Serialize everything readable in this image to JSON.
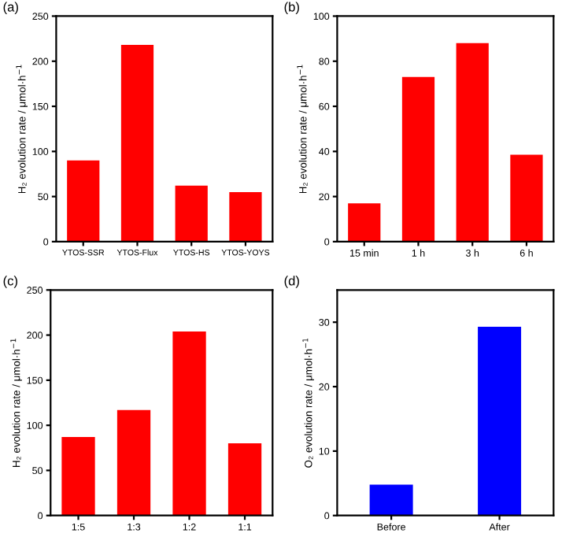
{
  "chart_data": [
    {
      "type": "bar",
      "title": "(a)",
      "ylabel": "H₂ evolution rate / μmol·h$^{−1}$",
      "categories": [
        "YTOS-SSR",
        "YTOS-Flux",
        "YTOS-HS",
        "YTOS-YOYS"
      ],
      "values": [
        90,
        218,
        62,
        55
      ],
      "color": "#ff0000",
      "ylim": [
        0,
        250
      ],
      "yticks": [
        0,
        50,
        100,
        150,
        200,
        250
      ]
    },
    {
      "type": "bar",
      "title": "(b)",
      "ylabel": "H₂ evolution rate / μmol·h$^{−1}$",
      "categories": [
        "15 min",
        "1 h",
        "3 h",
        "6 h"
      ],
      "values": [
        17,
        73,
        88,
        38.5
      ],
      "color": "#ff0000",
      "ylim": [
        0,
        100
      ],
      "yticks": [
        0,
        20,
        40,
        60,
        80,
        100
      ]
    },
    {
      "type": "bar",
      "title": "(c)",
      "ylabel": "H₂ evolution rate / μmol·h$^{−1}$",
      "categories": [
        "1:5",
        "1:3",
        "1:2",
        "1:1"
      ],
      "values": [
        87,
        117,
        204,
        80
      ],
      "color": "#ff0000",
      "ylim": [
        0,
        250
      ],
      "yticks": [
        0,
        50,
        100,
        150,
        200,
        250
      ]
    },
    {
      "type": "bar",
      "title": "(d)",
      "ylabel": "O₂ evolution rate / μmol·h$^{−1}$",
      "categories": [
        "Before",
        "After"
      ],
      "values": [
        4.8,
        29.3
      ],
      "color": "#0000ff",
      "ylim": [
        0,
        35
      ],
      "yticks": [
        0,
        10,
        20,
        30
      ]
    }
  ]
}
